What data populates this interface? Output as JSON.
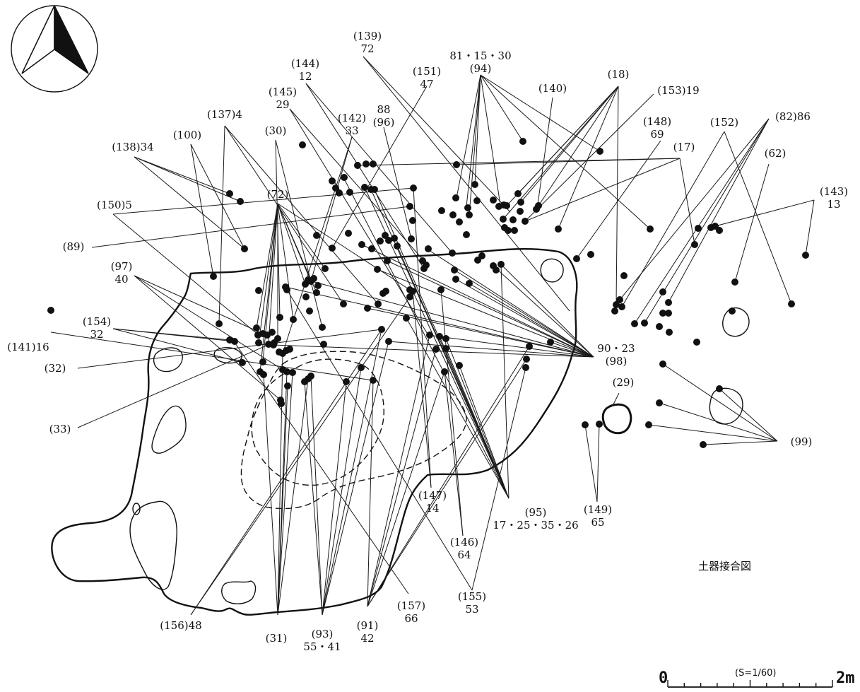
{
  "title": "土器接合図",
  "north_arrow": {
    "icon": "north-arrow-icon"
  },
  "scale_bar": {
    "start": "0",
    "end": "2m",
    "ratio": "(S=1/60)"
  },
  "labels": [
    {
      "id": "l139",
      "lines": [
        "(139)",
        "72"
      ]
    },
    {
      "id": "l94",
      "lines": [
        "81・15・30",
        "(94)"
      ]
    },
    {
      "id": "l144",
      "lines": [
        "(144)",
        "12"
      ]
    },
    {
      "id": "l151",
      "lines": [
        "(151)",
        "47"
      ]
    },
    {
      "id": "l18",
      "lines": [
        "(18)"
      ]
    },
    {
      "id": "l140",
      "lines": [
        "(140)"
      ]
    },
    {
      "id": "l153",
      "lines": [
        "(153)19"
      ]
    },
    {
      "id": "l145",
      "lines": [
        "(145)",
        "29"
      ]
    },
    {
      "id": "l142",
      "lines": [
        "(142)",
        "33"
      ]
    },
    {
      "id": "l96",
      "lines": [
        "88",
        "(96)"
      ]
    },
    {
      "id": "l137",
      "lines": [
        "(137)4"
      ]
    },
    {
      "id": "l30",
      "lines": [
        "(30)"
      ]
    },
    {
      "id": "l148",
      "lines": [
        "(148)",
        "69"
      ]
    },
    {
      "id": "l152",
      "lines": [
        "(152)"
      ]
    },
    {
      "id": "l82",
      "lines": [
        "(82)86"
      ]
    },
    {
      "id": "l100",
      "lines": [
        "(100)"
      ]
    },
    {
      "id": "l138",
      "lines": [
        "(138)34"
      ]
    },
    {
      "id": "l17",
      "lines": [
        "(17)"
      ]
    },
    {
      "id": "l62",
      "lines": [
        "(62)"
      ]
    },
    {
      "id": "l72",
      "lines": [
        "(72)"
      ]
    },
    {
      "id": "l143",
      "lines": [
        "(143)",
        "13"
      ]
    },
    {
      "id": "l150",
      "lines": [
        "(150)5"
      ]
    },
    {
      "id": "l89",
      "lines": [
        "(89)"
      ]
    },
    {
      "id": "l97",
      "lines": [
        "(97)",
        "40"
      ]
    },
    {
      "id": "l154",
      "lines": [
        "(154)",
        "32"
      ]
    },
    {
      "id": "l141",
      "lines": [
        "(141)16"
      ]
    },
    {
      "id": "l32",
      "lines": [
        "(32)"
      ]
    },
    {
      "id": "l98",
      "lines": [
        "90・23",
        "(98)"
      ]
    },
    {
      "id": "l29",
      "lines": [
        "(29)"
      ]
    },
    {
      "id": "l33",
      "lines": [
        "(33)"
      ]
    },
    {
      "id": "l99",
      "lines": [
        "(99)"
      ]
    },
    {
      "id": "l147",
      "lines": [
        "(147)",
        "14"
      ]
    },
    {
      "id": "l95",
      "lines": [
        "(95)",
        "17・25・35・26"
      ]
    },
    {
      "id": "l149",
      "lines": [
        "(149)",
        "65"
      ]
    },
    {
      "id": "l146",
      "lines": [
        "(146)",
        "64"
      ]
    },
    {
      "id": "l155",
      "lines": [
        "(155)",
        "53"
      ]
    },
    {
      "id": "l157",
      "lines": [
        "(157)",
        "66"
      ]
    },
    {
      "id": "l156",
      "lines": [
        "(156)48"
      ]
    },
    {
      "id": "l31",
      "lines": [
        "(31)"
      ]
    },
    {
      "id": "l93",
      "lines": [
        "(93)",
        "55・41"
      ]
    },
    {
      "id": "l91",
      "lines": [
        "(91)",
        "42"
      ]
    }
  ]
}
